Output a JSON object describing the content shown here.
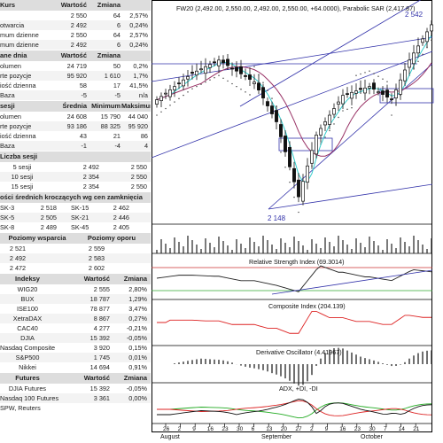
{
  "kurs": {
    "headers": [
      "Kurs",
      "Wartość",
      "Zmiana",
      ""
    ],
    "rows": [
      [
        "",
        "2 550",
        "64",
        "2,57%"
      ],
      [
        "otwarcia",
        "2 492",
        "6",
        "0,24%"
      ],
      [
        "mum dzienne",
        "2 550",
        "64",
        "2,57%"
      ],
      [
        "mum dzienne",
        "2 492",
        "6",
        "0,24%"
      ]
    ]
  },
  "dane_dnia": {
    "headers": [
      "ane dnia",
      "Wartość",
      "Zmiana",
      ""
    ],
    "rows": [
      [
        "olumen",
        "24 719",
        "50",
        "0,2%"
      ],
      [
        "rte pozycje",
        "95 920",
        "1 610",
        "1,7%"
      ],
      [
        "iość dzienna",
        "58",
        "17",
        "41,5%"
      ],
      [
        "Baza",
        "-5",
        "-5",
        "n/a"
      ]
    ]
  },
  "sesji": {
    "headers": [
      "sesji",
      "Średnia",
      "Minimum",
      "Maksimum"
    ],
    "rows": [
      [
        "olumen",
        "24 608",
        "15 790",
        "44 040"
      ],
      [
        "rte pozycje",
        "93 186",
        "88 325",
        "95 920"
      ],
      [
        "iość dzienna",
        "43",
        "21",
        "86"
      ],
      [
        "Baza",
        "-1",
        "-4",
        "4"
      ]
    ]
  },
  "liczba_sesji": {
    "headers": [
      "Liczba sesji",
      "",
      ""
    ],
    "rows": [
      [
        "5 sesji",
        "2 492",
        "2 550"
      ],
      [
        "10 sesji",
        "2 354",
        "2 550"
      ],
      [
        "15 sesji",
        "2 354",
        "2 550"
      ]
    ]
  },
  "srednie": {
    "header": "ości średnich kroczących wg cen zamknięcia",
    "rows": [
      [
        "SK-3",
        "2 518",
        "SK-15",
        "2 462"
      ],
      [
        "SK-5",
        "2 505",
        "SK-21",
        "2 446"
      ],
      [
        "SK-8",
        "2 489",
        "SK-45",
        "2 405"
      ]
    ]
  },
  "poziomy": {
    "headers": [
      "Poziomy wsparcia",
      "Poziomy oporu"
    ],
    "rows": [
      [
        "2 521",
        "2 559"
      ],
      [
        "2 492",
        "2 583"
      ],
      [
        "2 472",
        "2 602"
      ]
    ]
  },
  "indeksy": {
    "headers": [
      "Indeksy",
      "Wartość",
      "Zmiana"
    ],
    "rows": [
      [
        "WIG20",
        "2 555",
        "2,80%"
      ],
      [
        "BUX",
        "18 787",
        "1,29%"
      ],
      [
        "ISE100",
        "78 877",
        "3,47%"
      ],
      [
        "XetraDAX",
        "8 867",
        "0,27%"
      ],
      [
        "CAC40",
        "4 277",
        "-0,21%"
      ],
      [
        "DJIA",
        "15 392",
        "-0,05%"
      ],
      [
        "Nasdaq Composite",
        "3 920",
        "0,15%"
      ],
      [
        "S&P500",
        "1 745",
        "0,01%"
      ],
      [
        "Nikkei",
        "14 694",
        "0,91%"
      ]
    ]
  },
  "futures": {
    "headers": [
      "Futures",
      "Wartość",
      "Zmiana"
    ],
    "rows": [
      [
        "DJIA Futures",
        "15 392",
        "-0,05%"
      ],
      [
        "Nasdaq 100 Futures",
        "3 361",
        "0,00%"
      ]
    ]
  },
  "source_note": "SPW, Reuters",
  "chart": {
    "title": "FW20 (2,492.00, 2,550.00, 2,492.00, 2,550.00, +64.0000), Parabolic SAR (2,417.87)",
    "price_high_label": "2 542",
    "price_low_label": "2 148",
    "rsi_title": "Relative Strength Index (69.3014)",
    "composite_title": "Composite Index (204.139)",
    "deriv_title": "Derivative Oscillator (4.41967)",
    "adx_title": "ADX, +DI, -DI",
    "date_ticks": [
      "26",
      "2",
      "9",
      "16",
      "23",
      "30",
      "6",
      "13",
      "20",
      "27",
      "2",
      "9",
      "16",
      "23",
      "30",
      "7",
      "14",
      "21"
    ],
    "months": [
      "August",
      "September",
      "October"
    ]
  },
  "colors": {
    "price_up": "#ffffff",
    "price_down": "#111111",
    "sar": "#333333",
    "ma_fast": "#33cccc",
    "ma_slow": "#993366",
    "trend_lines": "#3333aa",
    "rsi_line": "#222222",
    "rsi_upper": "#cc3333",
    "rsi_lower": "#33aa33",
    "composite": "#dd2222",
    "adx": "#111111",
    "di_plus": "#22aa22",
    "di_minus": "#dd2222"
  }
}
